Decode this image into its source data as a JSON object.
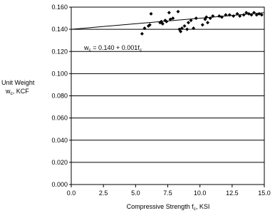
{
  "chart_data": {
    "type": "scatter",
    "x": [
      5.5,
      5.7,
      6.0,
      6.1,
      6.2,
      6.9,
      7.0,
      7.1,
      7.3,
      7.4,
      7.6,
      7.7,
      7.9,
      8.3,
      8.4,
      8.5,
      8.6,
      8.8,
      9.0,
      9.1,
      9.3,
      9.5,
      9.7,
      10.2,
      10.4,
      10.5,
      10.6,
      10.8,
      11.0,
      11.5,
      11.7,
      12.0,
      12.3,
      12.6,
      12.9,
      13.1,
      13.4,
      13.6,
      13.8,
      14.0,
      14.2,
      14.4,
      14.6,
      14.8
    ],
    "y": [
      0.136,
      0.141,
      0.143,
      0.144,
      0.154,
      0.146,
      0.147,
      0.145,
      0.148,
      0.147,
      0.155,
      0.149,
      0.15,
      0.156,
      0.14,
      0.138,
      0.141,
      0.143,
      0.14,
      0.146,
      0.148,
      0.141,
      0.15,
      0.144,
      0.149,
      0.151,
      0.146,
      0.15,
      0.152,
      0.152,
      0.151,
      0.153,
      0.153,
      0.152,
      0.154,
      0.152,
      0.153,
      0.155,
      0.154,
      0.153,
      0.155,
      0.153,
      0.154,
      0.153
    ],
    "color": "#000000",
    "trend_line": {
      "x": [
        0,
        15
      ],
      "y": [
        0.14,
        0.155
      ]
    },
    "annotation": [
      "w",
      "c",
      " = 0.140 + 0.001f",
      "c"
    ],
    "y_label": {
      "line1": "Unit Weight",
      "line2": [
        "w",
        "c",
        ", KCF"
      ]
    },
    "x_label": [
      "Compressive Strength f",
      "c",
      ", KSI"
    ],
    "xlim": [
      0,
      15
    ],
    "xticks": [
      {
        "value": 0,
        "label": "0.0"
      },
      2.5,
      {
        "value": 5,
        "label": "5.0"
      },
      7.5,
      {
        "value": 10,
        "label": "10.0"
      },
      12.5,
      {
        "value": 15,
        "label": "15.0"
      }
    ],
    "ylim": [
      0,
      0.16
    ],
    "yticks": [
      {
        "value": 0,
        "label": "0.000"
      },
      {
        "value": 0.02,
        "label": "0.020"
      },
      {
        "value": 0.04,
        "label": "0.040"
      },
      {
        "value": 0.06,
        "label": "0.060"
      },
      {
        "value": 0.08,
        "label": "0.080"
      },
      {
        "value": 0.1,
        "label": "0.100"
      },
      {
        "value": 0.12,
        "label": "0.120"
      },
      {
        "value": 0.14,
        "label": "0.140"
      },
      {
        "value": 0.16,
        "label": "0.160"
      }
    ],
    "grid": true
  }
}
